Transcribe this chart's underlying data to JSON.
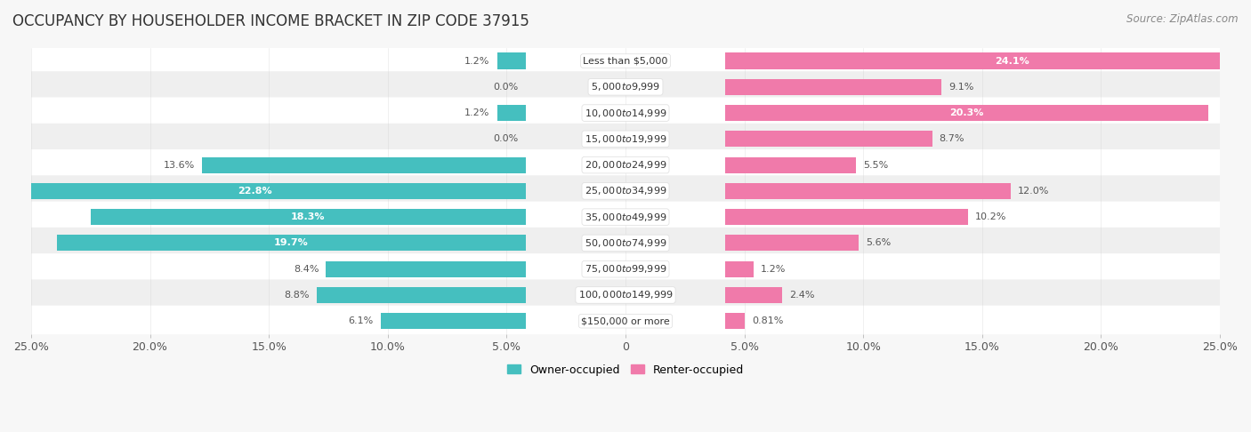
{
  "title": "OCCUPANCY BY HOUSEHOLDER INCOME BRACKET IN ZIP CODE 37915",
  "source": "Source: ZipAtlas.com",
  "categories": [
    "Less than $5,000",
    "$5,000 to $9,999",
    "$10,000 to $14,999",
    "$15,000 to $19,999",
    "$20,000 to $24,999",
    "$25,000 to $34,999",
    "$35,000 to $49,999",
    "$50,000 to $74,999",
    "$75,000 to $99,999",
    "$100,000 to $149,999",
    "$150,000 or more"
  ],
  "owner_values": [
    1.2,
    0.0,
    1.2,
    0.0,
    13.6,
    22.8,
    18.3,
    19.7,
    8.4,
    8.8,
    6.1
  ],
  "renter_values": [
    24.1,
    9.1,
    20.3,
    8.7,
    5.5,
    12.0,
    10.2,
    5.6,
    1.2,
    2.4,
    0.81
  ],
  "owner_color": "#45BFBF",
  "renter_color": "#F07AAA",
  "owner_color_light": "#7DDADA",
  "renter_color_light": "#F5A8C5",
  "axis_limit": 25.0,
  "background_color": "#f7f7f7",
  "row_color_odd": "#ffffff",
  "row_color_even": "#efefef",
  "bar_height": 0.62,
  "title_fontsize": 12,
  "source_fontsize": 8.5,
  "tick_fontsize": 9,
  "legend_fontsize": 9,
  "value_fontsize": 8,
  "cat_fontsize": 8,
  "x_ticks": [
    -25,
    -20,
    -15,
    -10,
    -5,
    0,
    5,
    10,
    15,
    20,
    25
  ],
  "x_tick_labels": [
    "25.0%",
    "20.0%",
    "15.0%",
    "10.0%",
    "5.0%",
    "0",
    "5.0%",
    "10.0%",
    "15.0%",
    "20.0%",
    "25.0%"
  ]
}
